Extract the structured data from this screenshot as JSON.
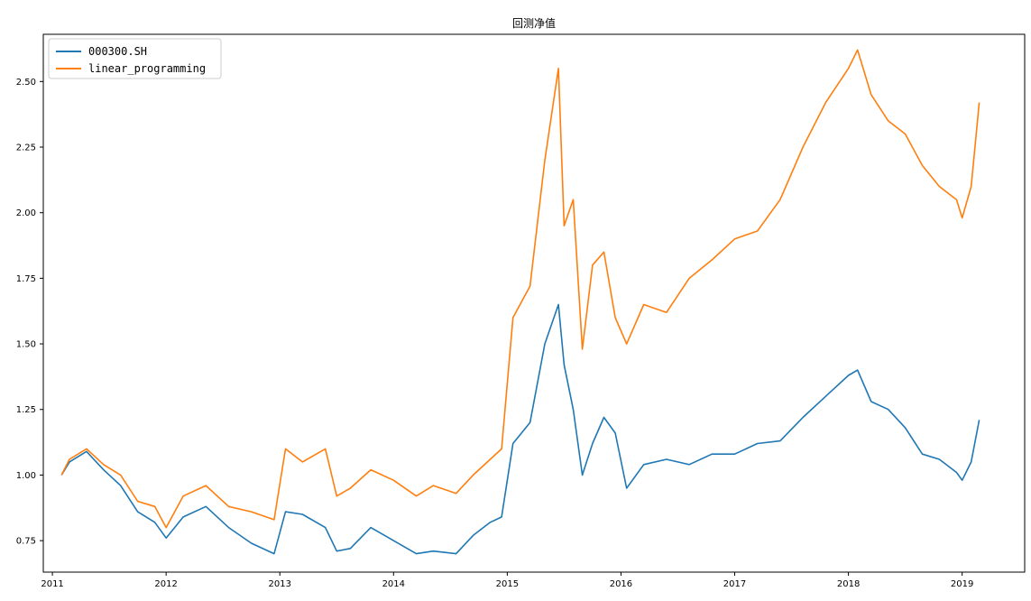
{
  "chart_data": {
    "type": "line",
    "title": "回测净值",
    "xlabel": "",
    "ylabel": "",
    "xlim": [
      2010.92,
      2019.55
    ],
    "ylim": [
      0.63,
      2.68
    ],
    "xticks": [
      "2011",
      "2012",
      "2013",
      "2014",
      "2015",
      "2016",
      "2017",
      "2018",
      "2019"
    ],
    "yticks": [
      "0.75",
      "1.00",
      "1.25",
      "1.50",
      "1.75",
      "2.00",
      "2.25",
      "2.50"
    ],
    "legend_position": "upper-left",
    "grid": false,
    "series": [
      {
        "name": "000300.SH",
        "color": "#1f77b4",
        "x": [
          2011.08,
          2011.15,
          2011.3,
          2011.45,
          2011.6,
          2011.75,
          2011.9,
          2012.0,
          2012.15,
          2012.35,
          2012.55,
          2012.75,
          2012.95,
          2013.05,
          2013.2,
          2013.4,
          2013.5,
          2013.62,
          2013.8,
          2014.0,
          2014.2,
          2014.35,
          2014.55,
          2014.7,
          2014.85,
          2014.95,
          2015.05,
          2015.2,
          2015.33,
          2015.45,
          2015.5,
          2015.58,
          2015.66,
          2015.75,
          2015.85,
          2015.95,
          2016.05,
          2016.2,
          2016.4,
          2016.6,
          2016.8,
          2017.0,
          2017.2,
          2017.4,
          2017.6,
          2017.8,
          2018.0,
          2018.08,
          2018.2,
          2018.35,
          2018.5,
          2018.65,
          2018.8,
          2018.95,
          2019.0,
          2019.08,
          2019.15
        ],
        "y": [
          1.0,
          1.05,
          1.09,
          1.02,
          0.96,
          0.86,
          0.82,
          0.76,
          0.84,
          0.88,
          0.8,
          0.74,
          0.7,
          0.86,
          0.85,
          0.8,
          0.71,
          0.72,
          0.8,
          0.75,
          0.7,
          0.71,
          0.7,
          0.77,
          0.82,
          0.84,
          1.12,
          1.2,
          1.5,
          1.65,
          1.42,
          1.25,
          1.0,
          1.12,
          1.22,
          1.16,
          0.95,
          1.04,
          1.06,
          1.04,
          1.08,
          1.08,
          1.12,
          1.13,
          1.22,
          1.3,
          1.38,
          1.4,
          1.28,
          1.25,
          1.18,
          1.08,
          1.06,
          1.01,
          0.98,
          1.05,
          1.21
        ]
      },
      {
        "name": "linear_programming",
        "color": "#ff7f0e",
        "x": [
          2011.08,
          2011.15,
          2011.3,
          2011.45,
          2011.6,
          2011.75,
          2011.9,
          2012.0,
          2012.15,
          2012.35,
          2012.55,
          2012.75,
          2012.95,
          2013.05,
          2013.2,
          2013.4,
          2013.5,
          2013.62,
          2013.8,
          2014.0,
          2014.2,
          2014.35,
          2014.55,
          2014.7,
          2014.85,
          2014.95,
          2015.05,
          2015.2,
          2015.33,
          2015.45,
          2015.5,
          2015.58,
          2015.66,
          2015.75,
          2015.85,
          2015.95,
          2016.05,
          2016.2,
          2016.4,
          2016.6,
          2016.8,
          2017.0,
          2017.2,
          2017.4,
          2017.6,
          2017.8,
          2018.0,
          2018.08,
          2018.2,
          2018.35,
          2018.5,
          2018.65,
          2018.8,
          2018.95,
          2019.0,
          2019.08,
          2019.15
        ],
        "y": [
          1.0,
          1.06,
          1.1,
          1.04,
          1.0,
          0.9,
          0.88,
          0.8,
          0.92,
          0.96,
          0.88,
          0.86,
          0.83,
          1.1,
          1.05,
          1.1,
          0.92,
          0.95,
          1.02,
          0.98,
          0.92,
          0.96,
          0.93,
          1.0,
          1.06,
          1.1,
          1.6,
          1.72,
          2.2,
          2.55,
          1.95,
          2.05,
          1.48,
          1.8,
          1.85,
          1.6,
          1.5,
          1.65,
          1.62,
          1.75,
          1.82,
          1.9,
          1.93,
          2.05,
          2.25,
          2.42,
          2.55,
          2.62,
          2.45,
          2.35,
          2.3,
          2.18,
          2.1,
          2.05,
          1.98,
          2.1,
          2.42
        ]
      }
    ]
  }
}
